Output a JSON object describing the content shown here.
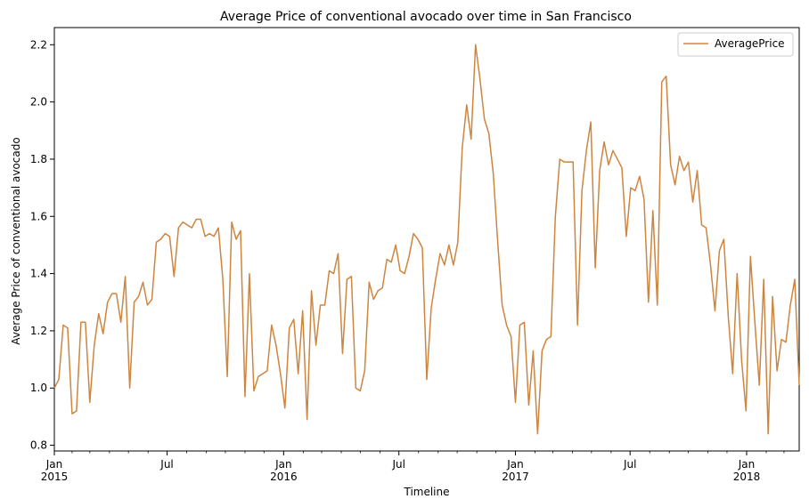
{
  "chart_data": {
    "type": "line",
    "title": "Average Price of conventional avocado over time in San Francisco",
    "xlabel": "Timeline",
    "ylabel": "Average Price of conventional avocado",
    "xlim": [
      "2015-01-04",
      "2018-03-25"
    ],
    "ylim": [
      0.78,
      2.26
    ],
    "grid": false,
    "legend_position": "top-right",
    "line_color": "#cd853f",
    "x_ticks": [
      {
        "date": "2015-01-01",
        "label": "Jan",
        "sublabel": "2015"
      },
      {
        "date": "2015-07-01",
        "label": "Jul",
        "sublabel": ""
      },
      {
        "date": "2016-01-01",
        "label": "Jan",
        "sublabel": "2016"
      },
      {
        "date": "2016-07-01",
        "label": "Jul",
        "sublabel": ""
      },
      {
        "date": "2017-01-01",
        "label": "Jan",
        "sublabel": "2017"
      },
      {
        "date": "2017-07-01",
        "label": "Jul",
        "sublabel": ""
      },
      {
        "date": "2018-01-01",
        "label": "Jan",
        "sublabel": "2018"
      }
    ],
    "y_ticks": [
      {
        "value": 0.8,
        "label": "0.8"
      },
      {
        "value": 1.0,
        "label": "1.0"
      },
      {
        "value": 1.2,
        "label": "1.2"
      },
      {
        "value": 1.4,
        "label": "1.4"
      },
      {
        "value": 1.6,
        "label": "1.6"
      },
      {
        "value": 1.8,
        "label": "1.8"
      },
      {
        "value": 2.0,
        "label": "2.0"
      },
      {
        "value": 2.2,
        "label": "2.2"
      }
    ],
    "series": [
      {
        "name": "AveragePrice",
        "x": [
          "2015-01-04",
          "2015-01-11",
          "2015-01-18",
          "2015-01-25",
          "2015-02-01",
          "2015-02-08",
          "2015-02-15",
          "2015-02-22",
          "2015-03-01",
          "2015-03-08",
          "2015-03-15",
          "2015-03-22",
          "2015-03-29",
          "2015-04-05",
          "2015-04-12",
          "2015-04-19",
          "2015-04-26",
          "2015-05-03",
          "2015-05-10",
          "2015-05-17",
          "2015-05-24",
          "2015-05-31",
          "2015-06-07",
          "2015-06-14",
          "2015-06-21",
          "2015-06-28",
          "2015-07-05",
          "2015-07-12",
          "2015-07-19",
          "2015-07-26",
          "2015-08-02",
          "2015-08-09",
          "2015-08-16",
          "2015-08-23",
          "2015-08-30",
          "2015-09-06",
          "2015-09-13",
          "2015-09-20",
          "2015-09-27",
          "2015-10-04",
          "2015-10-11",
          "2015-10-18",
          "2015-10-25",
          "2015-11-01",
          "2015-11-08",
          "2015-11-15",
          "2015-11-22",
          "2015-11-29",
          "2015-12-06",
          "2015-12-13",
          "2015-12-20",
          "2015-12-27",
          "2016-01-03",
          "2016-01-10",
          "2016-01-17",
          "2016-01-24",
          "2016-01-31",
          "2016-02-07",
          "2016-02-14",
          "2016-02-21",
          "2016-02-28",
          "2016-03-06",
          "2016-03-13",
          "2016-03-20",
          "2016-03-27",
          "2016-04-03",
          "2016-04-10",
          "2016-04-17",
          "2016-04-24",
          "2016-05-01",
          "2016-05-08",
          "2016-05-15",
          "2016-05-22",
          "2016-05-29",
          "2016-06-05",
          "2016-06-12",
          "2016-06-19",
          "2016-06-26",
          "2016-07-03",
          "2016-07-10",
          "2016-07-17",
          "2016-07-24",
          "2016-07-31",
          "2016-08-07",
          "2016-08-14",
          "2016-08-21",
          "2016-08-28",
          "2016-09-04",
          "2016-09-11",
          "2016-09-18",
          "2016-09-25",
          "2016-10-02",
          "2016-10-09",
          "2016-10-16",
          "2016-10-23",
          "2016-10-30",
          "2016-11-06",
          "2016-11-13",
          "2016-11-20",
          "2016-11-27",
          "2016-12-04",
          "2016-12-11",
          "2016-12-18",
          "2016-12-25",
          "2017-01-01",
          "2017-01-08",
          "2017-01-15",
          "2017-01-22",
          "2017-01-29",
          "2017-02-05",
          "2017-02-12",
          "2017-02-19",
          "2017-02-26",
          "2017-03-05",
          "2017-03-12",
          "2017-03-19",
          "2017-03-26",
          "2017-04-02",
          "2017-04-09",
          "2017-04-16",
          "2017-04-23",
          "2017-04-30",
          "2017-05-07",
          "2017-05-14",
          "2017-05-21",
          "2017-05-28",
          "2017-06-04",
          "2017-06-11",
          "2017-06-18",
          "2017-06-25",
          "2017-07-02",
          "2017-07-09",
          "2017-07-16",
          "2017-07-23",
          "2017-07-30",
          "2017-08-06",
          "2017-08-13",
          "2017-08-20",
          "2017-08-27",
          "2017-09-03",
          "2017-09-10",
          "2017-09-17",
          "2017-09-24",
          "2017-10-01",
          "2017-10-08",
          "2017-10-15",
          "2017-10-22",
          "2017-10-29",
          "2017-11-05",
          "2017-11-12",
          "2017-11-19",
          "2017-11-26",
          "2017-12-03",
          "2017-12-10",
          "2017-12-17",
          "2017-12-24",
          "2017-12-31",
          "2018-01-07",
          "2018-01-14",
          "2018-01-21",
          "2018-01-28",
          "2018-02-04",
          "2018-02-11",
          "2018-02-18",
          "2018-02-25",
          "2018-03-04",
          "2018-03-11",
          "2018-03-18",
          "2018-03-25"
        ],
        "y": [
          1.0,
          1.03,
          1.22,
          1.21,
          0.91,
          0.92,
          1.23,
          1.23,
          0.95,
          1.15,
          1.26,
          1.19,
          1.3,
          1.33,
          1.33,
          1.23,
          1.39,
          1.0,
          1.3,
          1.32,
          1.37,
          1.29,
          1.31,
          1.51,
          1.52,
          1.54,
          1.53,
          1.39,
          1.56,
          1.58,
          1.57,
          1.56,
          1.59,
          1.59,
          1.53,
          1.54,
          1.53,
          1.56,
          1.38,
          1.04,
          1.58,
          1.52,
          1.55,
          0.97,
          1.4,
          0.99,
          1.04,
          1.05,
          1.06,
          1.22,
          1.15,
          1.05,
          0.93,
          1.21,
          1.24,
          1.05,
          1.27,
          0.89,
          1.34,
          1.15,
          1.29,
          1.29,
          1.41,
          1.4,
          1.47,
          1.12,
          1.38,
          1.39,
          1.0,
          0.99,
          1.06,
          1.37,
          1.31,
          1.34,
          1.35,
          1.45,
          1.44,
          1.5,
          1.41,
          1.4,
          1.46,
          1.54,
          1.52,
          1.49,
          1.03,
          1.28,
          1.38,
          1.47,
          1.43,
          1.5,
          1.43,
          1.51,
          1.84,
          1.99,
          1.87,
          2.2,
          2.08,
          1.94,
          1.89,
          1.75,
          1.51,
          1.29,
          1.22,
          1.18,
          0.95,
          1.22,
          1.23,
          0.94,
          1.13,
          0.84,
          1.13,
          1.17,
          1.18,
          1.6,
          1.8,
          1.79,
          1.79,
          1.79,
          1.22,
          1.69,
          1.83,
          1.93,
          1.42,
          1.76,
          1.86,
          1.78,
          1.83,
          1.8,
          1.77,
          1.53,
          1.7,
          1.69,
          1.74,
          1.66,
          1.3,
          1.62,
          1.29,
          2.07,
          2.09,
          1.78,
          1.71,
          1.81,
          1.76,
          1.79,
          1.65,
          1.76,
          1.57,
          1.56,
          1.43,
          1.27,
          1.48,
          1.52,
          1.25,
          1.05,
          1.4,
          1.1,
          0.92,
          1.46,
          1.23,
          1.01,
          1.38,
          0.84,
          1.32,
          1.06,
          1.17,
          1.16,
          1.29,
          1.38,
          1.01
        ]
      }
    ]
  }
}
